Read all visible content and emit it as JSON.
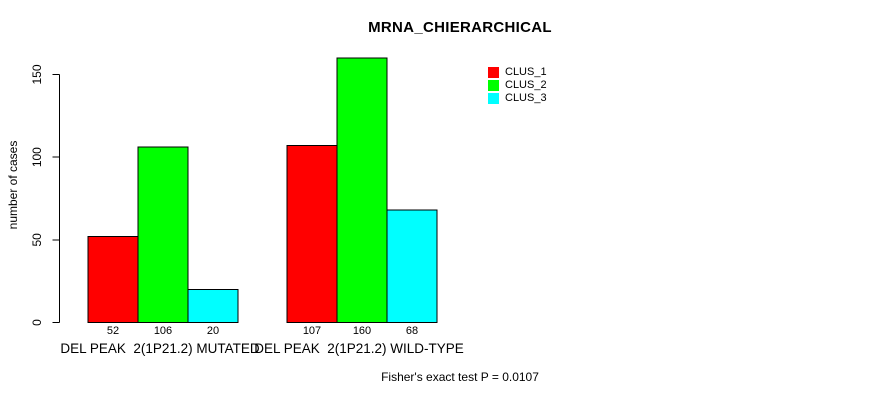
{
  "title": "MRNA_CHIERARCHICAL",
  "annotation": "Fisher's exact test P = 0.0107",
  "chart_data": {
    "type": "bar",
    "title": "MRNA_CHIERARCHICAL",
    "categories": [
      "DEL PEAK  2(1P21.2) MUTATED",
      "DEL PEAK  2(1P21.2) WILD-TYPE"
    ],
    "series": [
      {
        "name": "CLUS_1",
        "color": "#ff0000",
        "values": [
          52,
          107
        ]
      },
      {
        "name": "CLUS_2",
        "color": "#00ff00",
        "values": [
          106,
          160
        ]
      },
      {
        "name": "CLUS_3",
        "color": "#00ffff",
        "values": [
          20,
          68
        ]
      }
    ],
    "bar_value_labels": [
      [
        52,
        106,
        20
      ],
      [
        107,
        160,
        68
      ]
    ],
    "xlabel": "",
    "ylabel": "number of cases",
    "yticks": [
      0,
      50,
      100,
      150
    ],
    "ylim": [
      0,
      150
    ],
    "grid": false,
    "legend_position": "top-right",
    "bar_border_color": "#000000",
    "axis_color": "#000000",
    "background_color": "#ffffff"
  }
}
